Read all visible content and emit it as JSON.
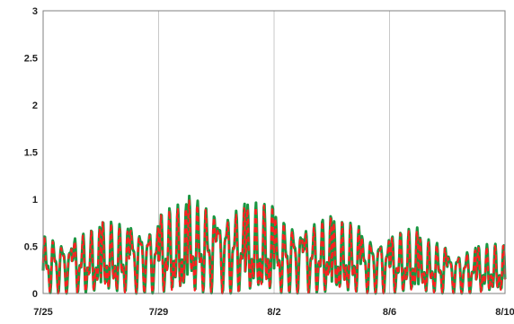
{
  "chart_data": {
    "type": "line",
    "title": "",
    "xlabel": "",
    "ylabel": "",
    "grid": "vertical",
    "legend": "none",
    "xlim": [
      "7/25",
      "8/10"
    ],
    "ylim": [
      0,
      3
    ],
    "x_ticks": [
      "7/25",
      "7/29",
      "8/2",
      "8/6",
      "8/10"
    ],
    "y_ticks": [
      "0",
      "0.5",
      "1",
      "1.5",
      "2",
      "2.5",
      "3"
    ],
    "colors": {
      "series_a": "#1a9641",
      "series_b": "#ff2020",
      "grid": "#c8c8c8",
      "frame": "#7f7f7f"
    },
    "daily_peaks": [
      0.7,
      0.72,
      0.78,
      0.88,
      0.95,
      1.06,
      1.05,
      0.97,
      0.9,
      0.86,
      0.78,
      0.74,
      0.7,
      0.6,
      0.55,
      0.53
    ],
    "series": [
      {
        "line_style": "solid",
        "color": "series_a"
      },
      {
        "line_style": "dashed",
        "color": "series_b"
      }
    ]
  }
}
